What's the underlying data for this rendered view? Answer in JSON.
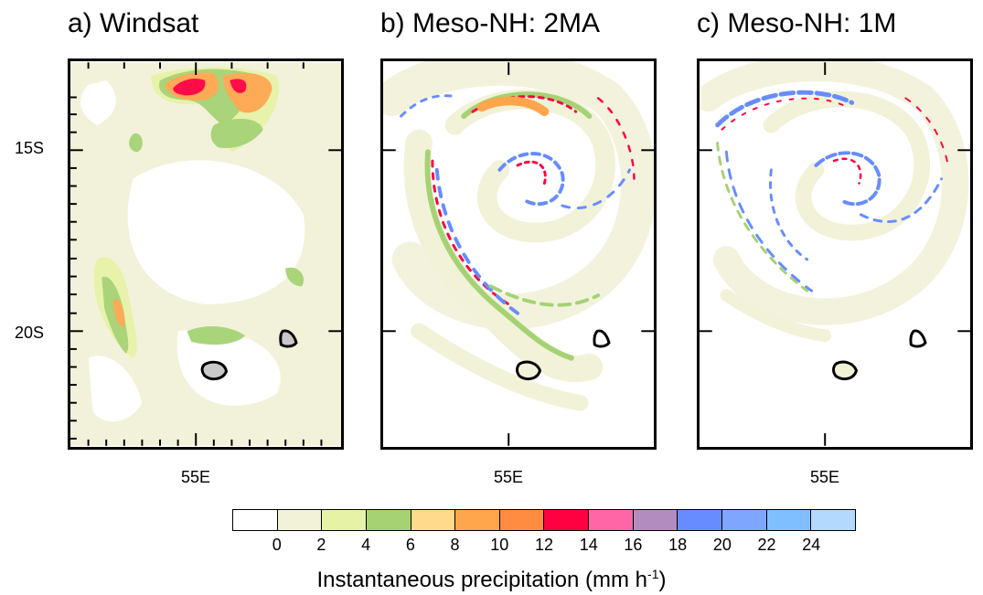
{
  "panels": [
    {
      "title": "a) Windsat"
    },
    {
      "title": "b) Meso-NH: 2MA"
    },
    {
      "title": "c) Meso-NH: 1M"
    }
  ],
  "axes": {
    "lat_labels": [
      "15S",
      "20S"
    ],
    "lon_label": "55E"
  },
  "colorbar": {
    "colors": [
      "#ffffff",
      "#f2f2d9",
      "#e6f2a6",
      "#a6d273",
      "#ffd98c",
      "#ffa64d",
      "#ff8c40",
      "#ff0040",
      "#ff66a6",
      "#b38cbf",
      "#668cff",
      "#7fa6ff",
      "#80bfff",
      "#b3d9ff"
    ],
    "ticks": [
      "0",
      "2",
      "4",
      "6",
      "8",
      "10",
      "12",
      "14",
      "16",
      "18",
      "20",
      "22",
      "24"
    ],
    "label": "Instantaneous precipitation (mm h",
    "label_sup": "-1",
    "label_end": ")"
  }
}
